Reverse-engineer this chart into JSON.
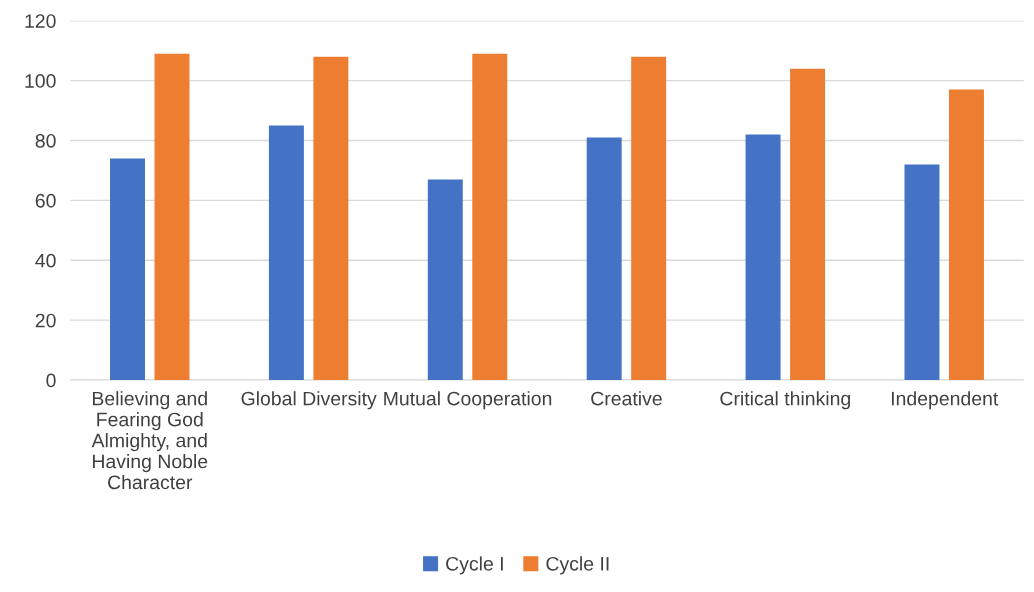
{
  "chart_data": {
    "type": "bar",
    "categories": [
      "Believing and Fearing God Almighty, and Having Noble Character",
      "Global Diversity",
      "Mutual Cooperation",
      "Creative",
      "Critical thinking",
      "Independent"
    ],
    "series": [
      {
        "name": "Cycle I",
        "color": "#4472c4",
        "values": [
          74,
          85,
          67,
          81,
          82,
          72
        ]
      },
      {
        "name": "Cycle II",
        "color": "#ed7d31",
        "values": [
          109,
          108,
          109,
          108,
          104,
          97
        ]
      }
    ],
    "ylim": [
      0,
      120
    ],
    "yticks": [
      0,
      20,
      40,
      60,
      80,
      100,
      120
    ],
    "grid": "y",
    "legend": "bottom"
  }
}
